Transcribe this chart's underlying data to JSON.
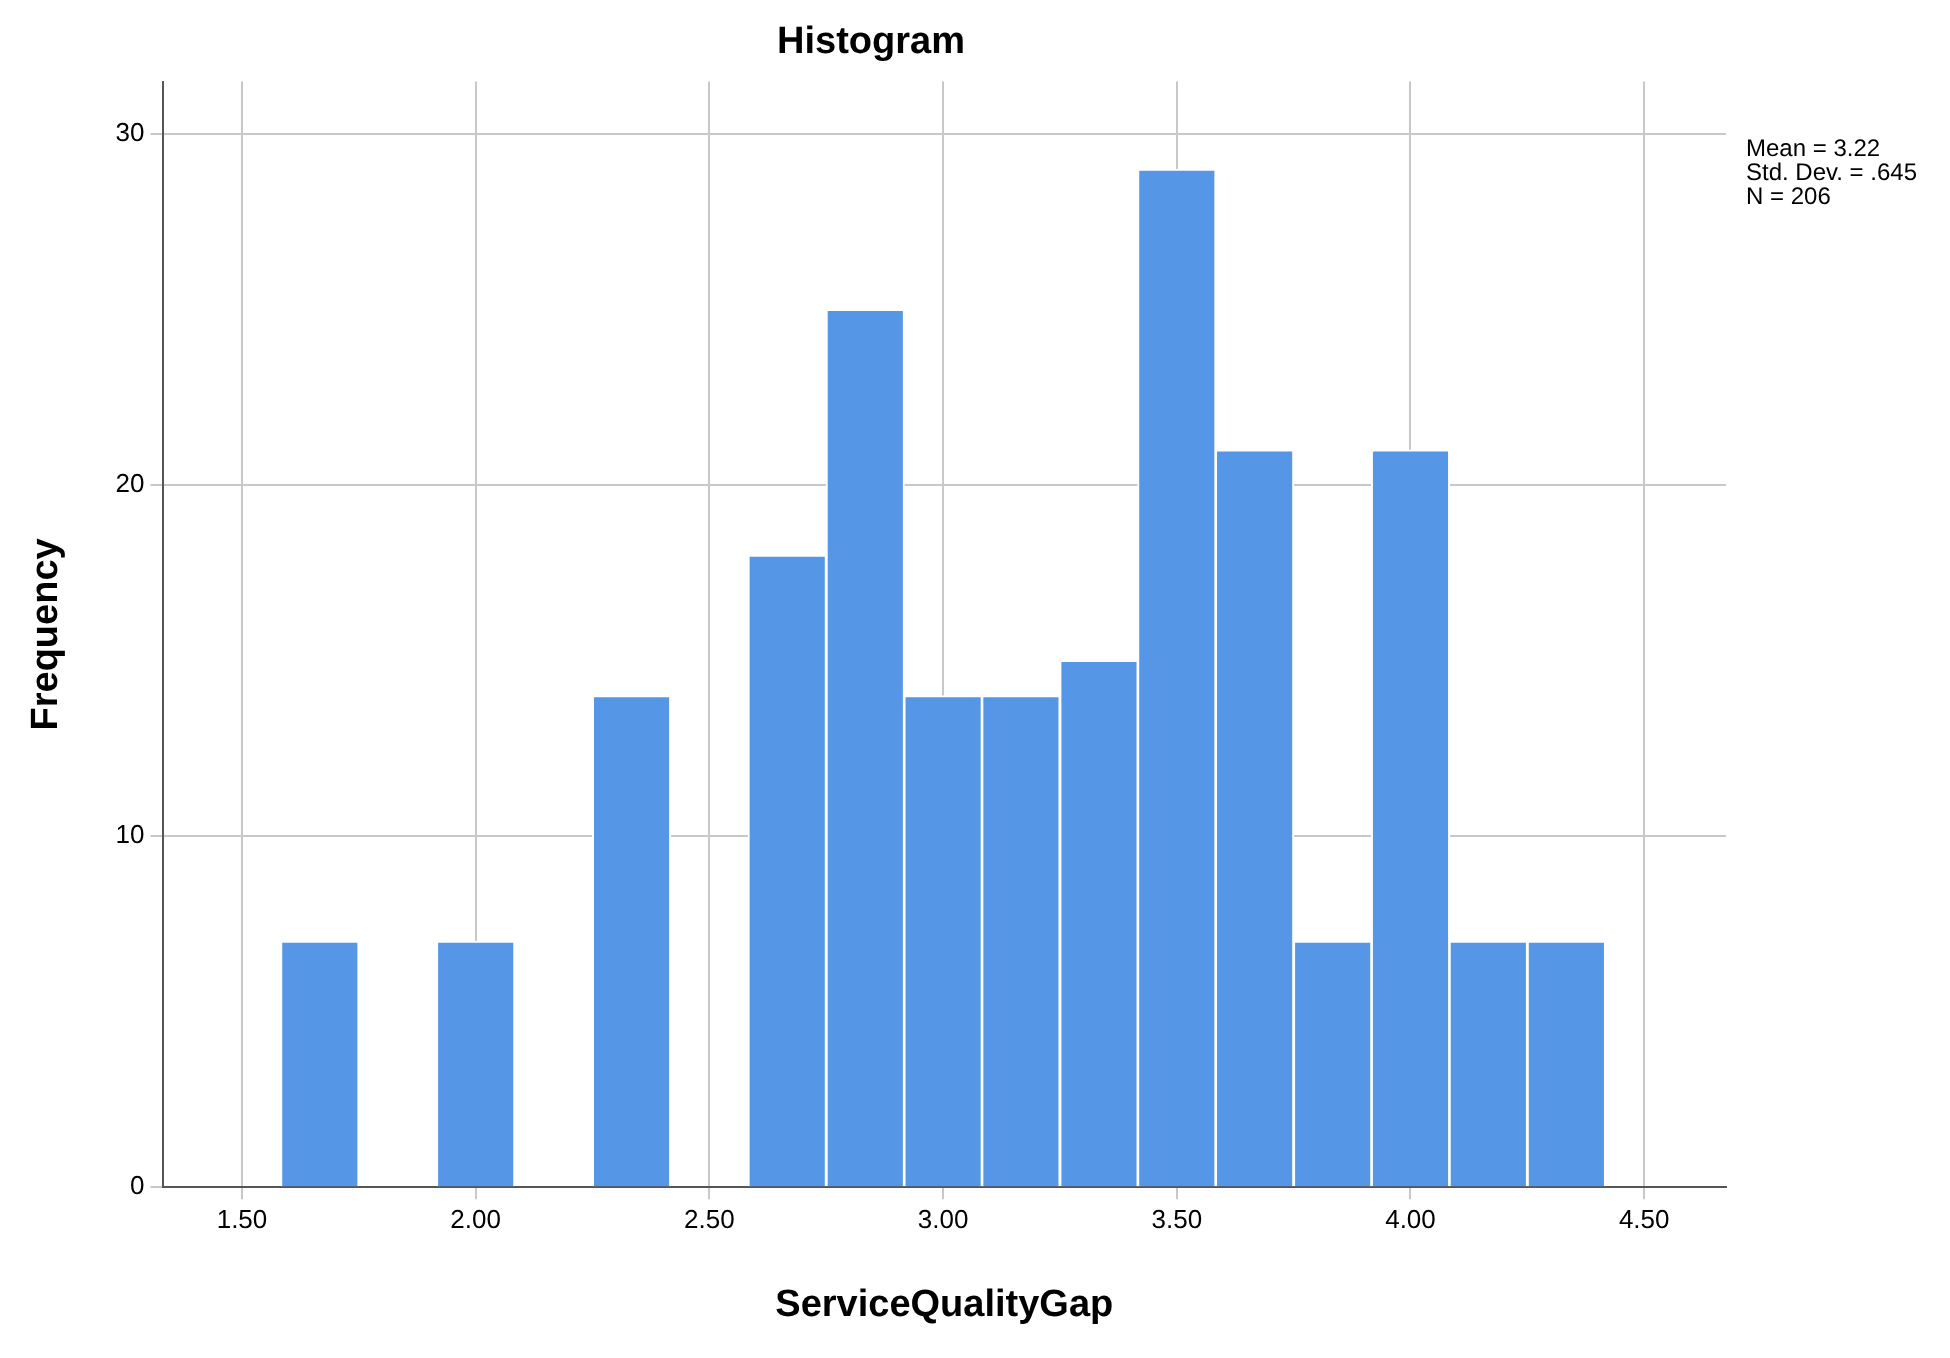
{
  "chart_data": {
    "type": "histogram",
    "title": "Histogram",
    "xlabel": "ServiceQualityGap",
    "ylabel": "Frequency",
    "bins": [
      1.583,
      1.75,
      1.917,
      2.083,
      2.25,
      2.417,
      2.583,
      2.75,
      2.917,
      3.083,
      3.25,
      3.417,
      3.583,
      3.75,
      3.917,
      4.083,
      4.25,
      4.417
    ],
    "values": [
      7,
      0,
      7,
      0,
      14,
      0,
      18,
      25,
      14,
      14,
      15,
      29,
      21,
      7,
      21,
      7,
      7
    ],
    "color": "#5596e6",
    "xlim": [
      1.33,
      4.675
    ],
    "xticks": [
      {
        "value": 1.5,
        "label": "1.50"
      },
      {
        "value": 2,
        "label": "2.00"
      },
      {
        "value": 2.5,
        "label": "2.50"
      },
      {
        "value": 3,
        "label": "3.00"
      },
      {
        "value": 3.5,
        "label": "3.50"
      },
      {
        "value": 4,
        "label": "4.00"
      },
      {
        "value": 4.5,
        "label": "4.50"
      }
    ],
    "ylim": [
      0,
      31.5
    ],
    "yticks": [
      0,
      10,
      20,
      30
    ],
    "grid": true,
    "annotations": [
      "Mean = 3.22",
      "Std. Dev. = .645",
      "N = 206"
    ]
  }
}
